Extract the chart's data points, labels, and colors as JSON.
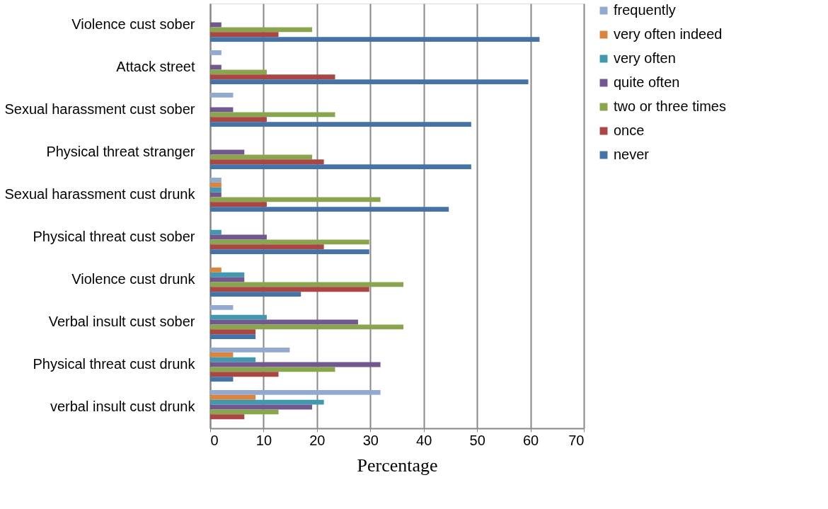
{
  "chart_data": {
    "type": "bar",
    "orientation": "horizontal",
    "xlabel": "Percentage",
    "categories": [
      "Violence cust sober",
      "Attack street",
      "Sexual harassment cust sober",
      "Physical threat stranger",
      "Sexual harassment cust drunk",
      "Physical threat cust sober",
      "Violence cust drunk",
      "Verbal insult cust sober",
      "Physical threat cust drunk",
      "verbal insult cust drunk"
    ],
    "series": [
      {
        "name": "frequently",
        "color": "#93a9cf",
        "values": [
          null,
          2.1,
          4.3,
          null,
          2.1,
          null,
          null,
          4.3,
          14.9,
          31.9
        ]
      },
      {
        "name": "very often indeed",
        "color": "#db843d",
        "values": [
          null,
          null,
          null,
          null,
          2.1,
          null,
          2.1,
          null,
          4.3,
          8.5
        ]
      },
      {
        "name": "very often",
        "color": "#4198af",
        "values": [
          null,
          null,
          null,
          null,
          2.1,
          2.1,
          6.4,
          10.6,
          8.5,
          21.3
        ]
      },
      {
        "name": "quite often",
        "color": "#71588f",
        "values": [
          2.1,
          2.1,
          4.3,
          6.4,
          2.1,
          10.6,
          6.4,
          27.7,
          31.9,
          19.1
        ]
      },
      {
        "name": "two or three times",
        "color": "#89a54e",
        "values": [
          19.1,
          10.6,
          23.4,
          19.1,
          31.9,
          29.8,
          36.2,
          36.2,
          23.4,
          12.8
        ]
      },
      {
        "name": "once",
        "color": "#aa4643",
        "values": [
          12.8,
          23.4,
          10.6,
          21.3,
          10.6,
          21.3,
          29.8,
          8.5,
          12.8,
          6.4
        ]
      },
      {
        "name": "never",
        "color": "#4572a7",
        "values": [
          61.7,
          59.6,
          48.9,
          48.9,
          44.7,
          29.8,
          17.0,
          8.5,
          4.3,
          null
        ]
      }
    ],
    "xlim": [
      0,
      70
    ],
    "xticks": [
      0,
      10,
      20,
      30,
      40,
      50,
      60,
      70
    ],
    "grid": "x",
    "legend": "right"
  }
}
